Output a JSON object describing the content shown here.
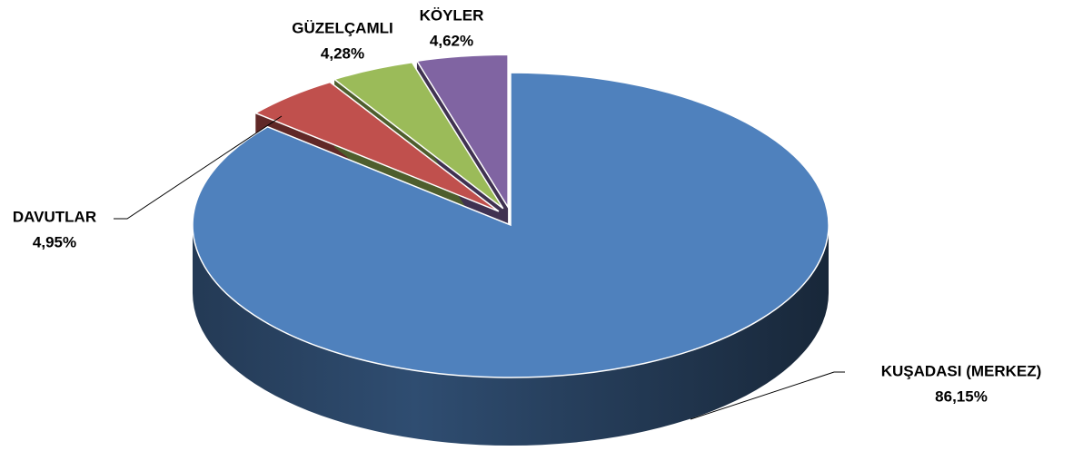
{
  "chart_data": {
    "type": "pie",
    "categories": [
      "KUŞADASI (MERKEZ)",
      "DAVUTLAR",
      "GÜZELÇAMLI",
      "KÖYLER"
    ],
    "values": [
      86.15,
      4.95,
      4.28,
      4.62
    ],
    "value_labels": [
      "86,15%",
      "4,95%",
      "4,28%",
      "4,62%"
    ],
    "colors": [
      "#4f81bd",
      "#c0504d",
      "#9bbb59",
      "#8064a2"
    ]
  }
}
